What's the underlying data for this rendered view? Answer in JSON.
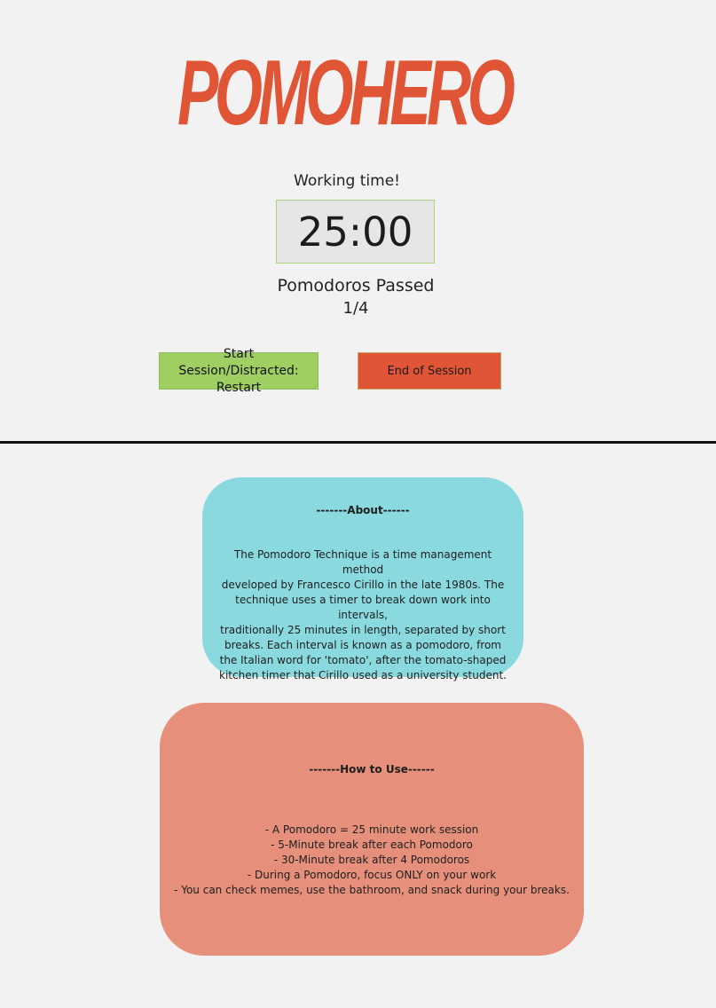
{
  "app": {
    "logo_text": "POMOHERO",
    "brand_color": "#e05535"
  },
  "timer": {
    "status": "Working time!",
    "time": "25:00",
    "passed_label": "Pomodoros Passed",
    "passed_count": "1/4"
  },
  "buttons": {
    "start_label_line1": "Start Session/Distracted:",
    "start_label_line2": "Restart",
    "end_label": "End of Session",
    "start_color": "#9fcf62",
    "end_color": "#e05535"
  },
  "about": {
    "title": "-------About------",
    "lines": [
      "The Pomodoro Technique is a time management method",
      "developed by Francesco Cirillo in the late 1980s. The",
      "technique uses a timer to break down work into intervals,",
      "traditionally 25 minutes in length, separated by short",
      "breaks. Each interval is known as a pomodoro, from",
      "the Italian word for 'tomato', after the tomato-shaped",
      "kitchen timer that Cirillo used as a university student."
    ],
    "color": "#8ad9de"
  },
  "howto": {
    "title": "-------How to Use------",
    "items": [
      "- A Pomodoro = 25 minute work session",
      "- 5-Minute break after each Pomodoro",
      "- 30-Minute break after 4 Pomodoros",
      "- During a Pomodoro, focus ONLY on your work",
      "- You can check memes, use the bathroom, and snack during your breaks."
    ],
    "color": "#e6907c"
  }
}
